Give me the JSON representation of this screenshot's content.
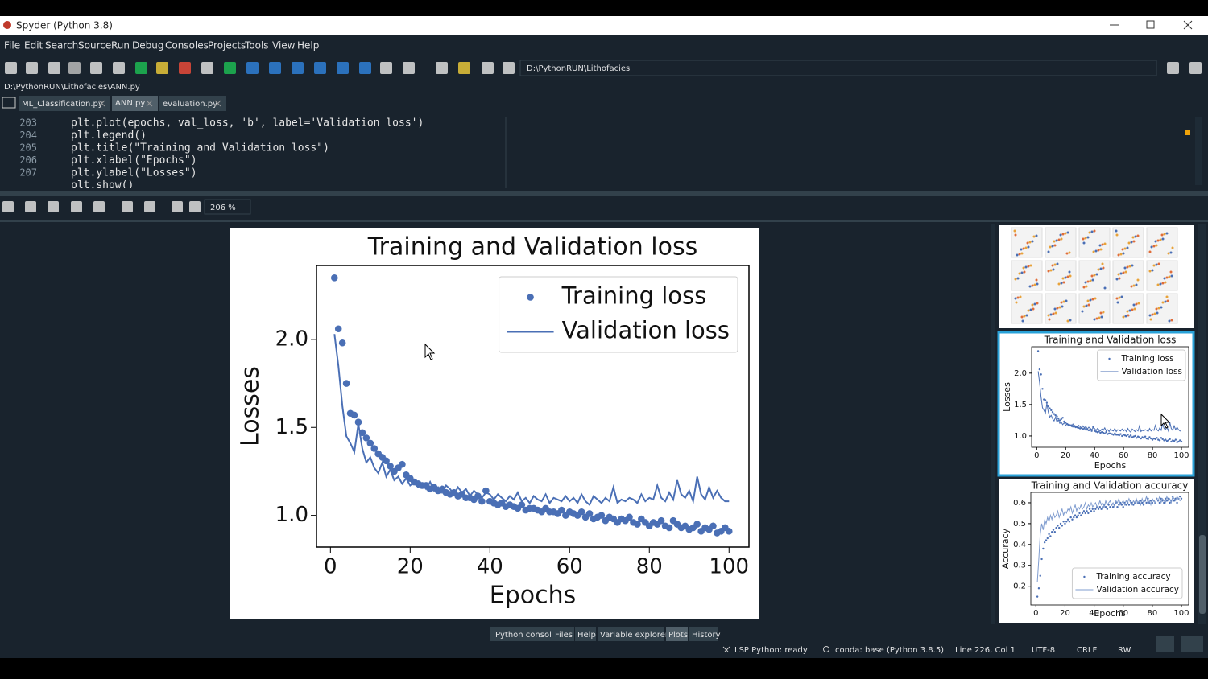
{
  "window": {
    "title": "Spyder (Python 3.8)"
  },
  "menu": [
    "File",
    "Edit",
    "Search",
    "Source",
    "Run",
    "Debug",
    "Consoles",
    "Projects",
    "Tools",
    "View",
    "Help"
  ],
  "toolbar": {
    "path": "D:\\PythonRUN\\Lithofacies"
  },
  "editor": {
    "file_path": "D:\\PythonRUN\\Lithofacies\\ANN.py",
    "tabs": [
      "ML_Classification.py",
      "ANN.py",
      "evaluation.py"
    ],
    "lines": [
      {
        "number": 203,
        "code": "plt.plot(epochs, val_loss, 'b', label='Validation loss')"
      },
      {
        "number": 204,
        "code": "plt.legend()"
      },
      {
        "number": 205,
        "code": "plt.title(\"Training and Validation loss\")"
      },
      {
        "number": 206,
        "code": "plt.xlabel(\"Epochs\")"
      },
      {
        "number": 207,
        "code": "plt.ylabel(\"Losses\")"
      },
      {
        "code": "plt.show()"
      }
    ]
  },
  "plots": {
    "zoom": "206 %"
  },
  "pane_tabs": [
    "IPython console",
    "Files",
    "Help",
    "Variable explorer",
    "Plots",
    "History"
  ],
  "status": [
    "LSP Python: ready",
    "conda: base (Python 3.8.5)",
    "Line 226, Col 1",
    "UTF-8",
    "CRLF",
    "RW"
  ],
  "chart_data": [
    {
      "type": "line",
      "title": "Training and Validation loss",
      "x_label": "Epochs",
      "y_label": "Losses",
      "xlim": [
        -3.5,
        105
      ],
      "ylim": [
        0.82,
        2.42
      ],
      "xticks": [
        0,
        20,
        40,
        60,
        80,
        100
      ],
      "yticks": [
        {
          "value": 1,
          "label": "1.0"
        },
        1.5,
        {
          "value": 2,
          "label": "2.0"
        }
      ],
      "legend": "upper right",
      "x": [
        1,
        2,
        3,
        4,
        5,
        6,
        7,
        8,
        9,
        10,
        11,
        12,
        13,
        14,
        15,
        16,
        17,
        18,
        19,
        20,
        21,
        22,
        23,
        24,
        25,
        26,
        27,
        28,
        29,
        30,
        31,
        32,
        33,
        34,
        35,
        36,
        37,
        38,
        39,
        40,
        41,
        42,
        43,
        44,
        45,
        46,
        47,
        48,
        49,
        50,
        51,
        52,
        53,
        54,
        55,
        56,
        57,
        58,
        59,
        60,
        61,
        62,
        63,
        64,
        65,
        66,
        67,
        68,
        69,
        70,
        71,
        72,
        73,
        74,
        75,
        76,
        77,
        78,
        79,
        80,
        81,
        82,
        83,
        84,
        85,
        86,
        87,
        88,
        89,
        90,
        91,
        92,
        93,
        94,
        95,
        96,
        97,
        98,
        99,
        100
      ],
      "series": [
        {
          "name": "Training loss",
          "color": "#4a6fb5",
          "style": "dot",
          "values": [
            2.35,
            2.06,
            1.98,
            1.75,
            1.58,
            1.57,
            1.53,
            1.47,
            1.44,
            1.41,
            1.38,
            1.35,
            1.33,
            1.31,
            1.28,
            1.25,
            1.27,
            1.29,
            1.23,
            1.21,
            1.19,
            1.18,
            1.17,
            1.17,
            1.15,
            1.16,
            1.14,
            1.15,
            1.13,
            1.12,
            1.13,
            1.11,
            1.12,
            1.1,
            1.1,
            1.09,
            1.11,
            1.08,
            1.14,
            1.08,
            1.07,
            1.06,
            1.07,
            1.05,
            1.06,
            1.05,
            1.04,
            1.06,
            1.03,
            1.04,
            1.04,
            1.03,
            1.02,
            1.04,
            1.02,
            1.02,
            1.01,
            1.03,
            1.0,
            1.02,
            1.01,
            1.0,
            1.02,
            0.99,
            1.01,
            0.98,
            0.99,
            1.0,
            0.97,
            0.99,
            0.98,
            0.96,
            0.98,
            0.97,
            0.99,
            0.96,
            0.95,
            0.98,
            0.96,
            0.94,
            0.96,
            0.95,
            0.97,
            0.94,
            0.93,
            0.97,
            0.95,
            0.93,
            0.94,
            0.92,
            0.93,
            0.95,
            0.91,
            0.93,
            0.92,
            0.94,
            0.9,
            0.91,
            0.93,
            0.91
          ]
        },
        {
          "name": "Validation loss",
          "color": "#4a6fb5",
          "style": "line",
          "values": [
            2.03,
            1.85,
            1.62,
            1.45,
            1.41,
            1.36,
            1.52,
            1.38,
            1.3,
            1.33,
            1.27,
            1.24,
            1.3,
            1.22,
            1.26,
            1.2,
            1.22,
            1.18,
            1.21,
            1.17,
            1.19,
            1.16,
            1.18,
            1.15,
            1.19,
            1.14,
            1.16,
            1.13,
            1.17,
            1.15,
            1.12,
            1.16,
            1.13,
            1.15,
            1.11,
            1.14,
            1.12,
            1.1,
            1.13,
            1.12,
            1.09,
            1.12,
            1.1,
            1.08,
            1.11,
            1.09,
            1.13,
            1.08,
            1.1,
            1.07,
            1.11,
            1.09,
            1.08,
            1.12,
            1.07,
            1.1,
            1.09,
            1.08,
            1.11,
            1.08,
            1.1,
            1.07,
            1.12,
            1.08,
            1.06,
            1.11,
            1.09,
            1.07,
            1.1,
            1.08,
            1.16,
            1.07,
            1.09,
            1.08,
            1.1,
            1.09,
            1.07,
            1.12,
            1.08,
            1.1,
            1.09,
            1.17,
            1.1,
            1.08,
            1.13,
            1.09,
            1.2,
            1.12,
            1.1,
            1.14,
            1.08,
            1.22,
            1.12,
            1.09,
            1.16,
            1.1,
            1.14,
            1.1,
            1.08,
            1.08
          ]
        }
      ]
    },
    {
      "type": "line",
      "title": "Training and Validation accuracy",
      "x_label": "Epochs",
      "y_label": "Accuracy",
      "xlim": [
        -3.5,
        105
      ],
      "ylim": [
        0.11,
        0.65
      ],
      "xticks": [
        0,
        20,
        40,
        60,
        80,
        100
      ],
      "yticks": [
        0.2,
        0.3,
        0.4,
        0.5,
        0.6
      ],
      "legend": "lower right",
      "x": [
        1,
        2,
        3,
        4,
        5,
        6,
        7,
        8,
        9,
        10,
        11,
        12,
        13,
        14,
        15,
        16,
        17,
        18,
        19,
        20,
        21,
        22,
        23,
        24,
        25,
        26,
        27,
        28,
        29,
        30,
        31,
        32,
        33,
        34,
        35,
        36,
        37,
        38,
        39,
        40,
        41,
        42,
        43,
        44,
        45,
        46,
        47,
        48,
        49,
        50,
        51,
        52,
        53,
        54,
        55,
        56,
        57,
        58,
        59,
        60,
        61,
        62,
        63,
        64,
        65,
        66,
        67,
        68,
        69,
        70,
        71,
        72,
        73,
        74,
        75,
        76,
        77,
        78,
        79,
        80,
        81,
        82,
        83,
        84,
        85,
        86,
        87,
        88,
        89,
        90,
        91,
        92,
        93,
        94,
        95,
        96,
        97,
        98,
        99,
        100
      ],
      "series": [
        {
          "name": "Training accuracy",
          "color": "#4a6fb5",
          "style": "dot",
          "values": [
            0.15,
            0.19,
            0.25,
            0.33,
            0.38,
            0.41,
            0.42,
            0.43,
            0.45,
            0.44,
            0.46,
            0.47,
            0.46,
            0.48,
            0.49,
            0.48,
            0.5,
            0.49,
            0.51,
            0.5,
            0.51,
            0.52,
            0.51,
            0.53,
            0.52,
            0.53,
            0.54,
            0.53,
            0.54,
            0.55,
            0.54,
            0.55,
            0.56,
            0.55,
            0.56,
            0.55,
            0.57,
            0.56,
            0.57,
            0.56,
            0.57,
            0.58,
            0.57,
            0.58,
            0.57,
            0.58,
            0.59,
            0.58,
            0.57,
            0.59,
            0.58,
            0.59,
            0.58,
            0.59,
            0.6,
            0.58,
            0.59,
            0.6,
            0.59,
            0.58,
            0.6,
            0.59,
            0.6,
            0.59,
            0.61,
            0.6,
            0.59,
            0.6,
            0.61,
            0.6,
            0.6,
            0.61,
            0.6,
            0.59,
            0.61,
            0.6,
            0.62,
            0.6,
            0.61,
            0.6,
            0.61,
            0.6,
            0.62,
            0.61,
            0.6,
            0.62,
            0.61,
            0.6,
            0.62,
            0.61,
            0.62,
            0.6,
            0.61,
            0.63,
            0.61,
            0.62,
            0.6,
            0.62,
            0.63,
            0.62
          ]
        },
        {
          "name": "Validation accuracy",
          "color": "#7f9ccf",
          "style": "line",
          "values": [
            0.22,
            0.33,
            0.45,
            0.5,
            0.47,
            0.52,
            0.5,
            0.53,
            0.51,
            0.54,
            0.52,
            0.55,
            0.53,
            0.54,
            0.56,
            0.53,
            0.55,
            0.57,
            0.54,
            0.56,
            0.55,
            0.57,
            0.56,
            0.58,
            0.55,
            0.57,
            0.59,
            0.56,
            0.58,
            0.57,
            0.59,
            0.57,
            0.58,
            0.6,
            0.57,
            0.59,
            0.58,
            0.6,
            0.58,
            0.59,
            0.6,
            0.58,
            0.59,
            0.61,
            0.59,
            0.6,
            0.58,
            0.61,
            0.59,
            0.6,
            0.61,
            0.59,
            0.6,
            0.58,
            0.61,
            0.6,
            0.62,
            0.59,
            0.6,
            0.61,
            0.59,
            0.61,
            0.6,
            0.62,
            0.6,
            0.59,
            0.61,
            0.6,
            0.62,
            0.6,
            0.61,
            0.59,
            0.62,
            0.6,
            0.61,
            0.63,
            0.6,
            0.61,
            0.59,
            0.62,
            0.61,
            0.6,
            0.62,
            0.61,
            0.63,
            0.6,
            0.62,
            0.61,
            0.6,
            0.63,
            0.61,
            0.62,
            0.6,
            0.63,
            0.62,
            0.61,
            0.63,
            0.62,
            0.61,
            0.62
          ]
        }
      ]
    }
  ]
}
